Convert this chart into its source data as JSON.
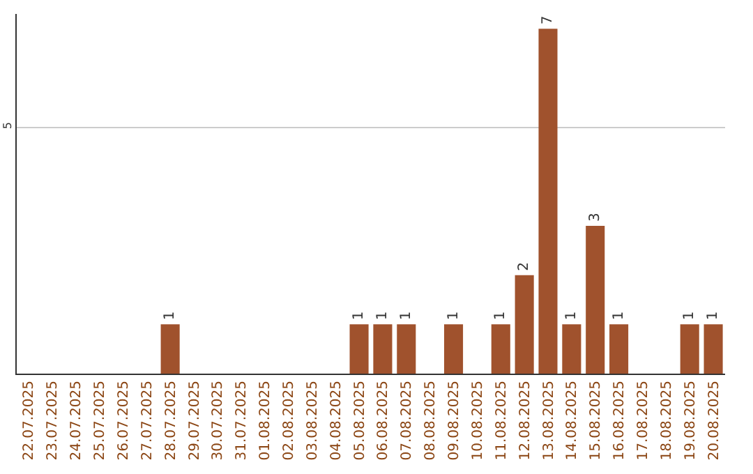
{
  "chart_data": {
    "type": "bar",
    "categories": [
      "22.07.2025",
      "23.07.2025",
      "24.07.2025",
      "25.07.2025",
      "26.07.2025",
      "27.07.2025",
      "28.07.2025",
      "29.07.2025",
      "30.07.2025",
      "31.07.2025",
      "01.08.2025",
      "02.08.2025",
      "03.08.2025",
      "04.08.2025",
      "05.08.2025",
      "06.08.2025",
      "07.08.2025",
      "08.08.2025",
      "09.08.2025",
      "10.08.2025",
      "11.08.2025",
      "12.08.2025",
      "13.08.2025",
      "14.08.2025",
      "15.08.2025",
      "16.08.2025",
      "17.08.2025",
      "18.08.2025",
      "19.08.2025",
      "20.08.2025"
    ],
    "values": [
      0,
      0,
      0,
      0,
      0,
      0,
      1,
      0,
      0,
      0,
      0,
      0,
      0,
      0,
      1,
      1,
      1,
      0,
      1,
      0,
      1,
      2,
      7,
      1,
      3,
      1,
      0,
      0,
      1,
      1
    ],
    "value_labels": [
      null,
      null,
      null,
      null,
      null,
      null,
      "1",
      null,
      null,
      null,
      null,
      null,
      null,
      null,
      "1",
      "1",
      "1",
      null,
      "1",
      null,
      "1",
      "2",
      "7",
      "1",
      "3",
      "1",
      null,
      null,
      "1",
      "1"
    ],
    "color": "#a0522d",
    "ylim": [
      0,
      7.3
    ],
    "yticks": [
      {
        "value": 0,
        "label": null
      },
      5
    ],
    "grid": "y"
  }
}
